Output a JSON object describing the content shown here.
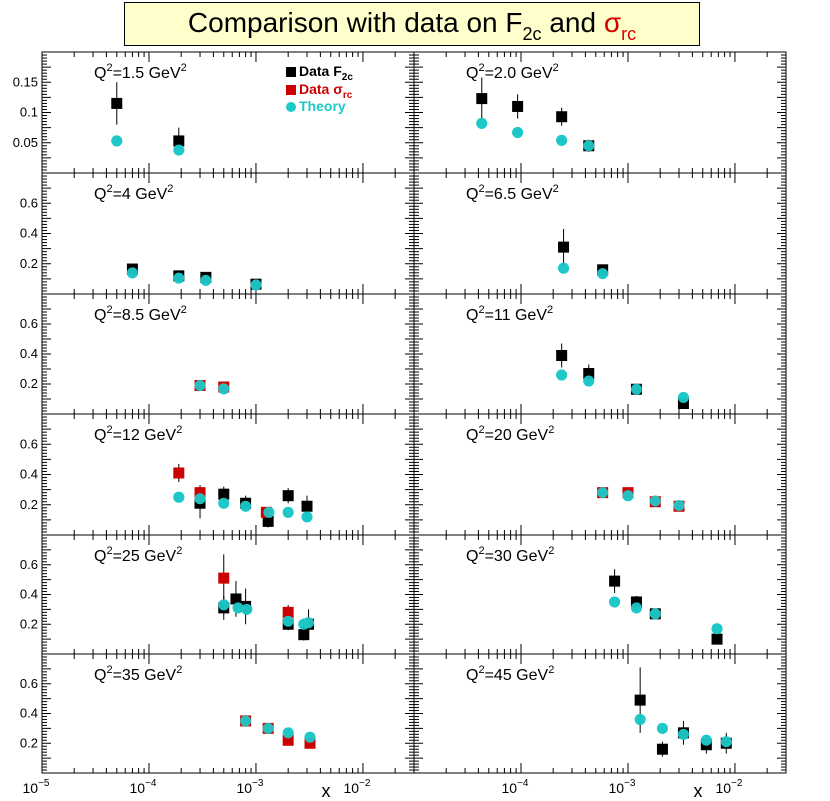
{
  "title": {
    "prefix": "Comparison with data on F",
    "f2c_sub": "2c",
    "mid": "and",
    "sigma": "σ",
    "sigma_sub": "rc"
  },
  "colors": {
    "f2c": "#000000",
    "sigma": "#cc0000",
    "theory": "#1fc8c8"
  },
  "legend": [
    {
      "marker": "square",
      "color": "#000000",
      "text": "Data F",
      "sub": "2c"
    },
    {
      "marker": "square",
      "color": "#cc0000",
      "text": "Data σ",
      "sub": "rc"
    },
    {
      "marker": "circle",
      "color": "#1fc8c8",
      "text": "Theory",
      "sub": ""
    }
  ],
  "chart_data": {
    "type": "scatter",
    "x_scale": "log",
    "xlim": [
      1e-05,
      0.03
    ],
    "xlabel": "x",
    "x_ticks": [
      {
        "value": 1e-05,
        "mant": "10",
        "exp": "−5"
      },
      {
        "value": 0.0001,
        "mant": "10",
        "exp": "−4"
      },
      {
        "value": 0.001,
        "mant": "10",
        "exp": "−3"
      },
      {
        "value": 0.01,
        "mant": "10",
        "exp": "−2"
      }
    ],
    "panels": [
      {
        "q2": "1.5",
        "col": 0,
        "row": 0,
        "ylim": [
          0,
          0.2
        ],
        "yticks": [
          0.05,
          0.1,
          0.15
        ],
        "ytick_labels": [
          "0.05",
          "0.1",
          "0.15"
        ],
        "f2c": [
          [
            5e-05,
            0.115,
            0.035
          ],
          [
            0.00019,
            0.053,
            0.022
          ]
        ],
        "sigma": [],
        "theory": [
          [
            5e-05,
            0.053
          ],
          [
            0.00019,
            0.038
          ]
        ]
      },
      {
        "q2": "2.0",
        "col": 1,
        "row": 0,
        "ylim": [
          0,
          0.2
        ],
        "yticks": [
          0.05,
          0.1,
          0.15
        ],
        "ytick_labels": [
          "",
          "",
          ""
        ],
        "f2c": [
          [
            4.3e-05,
            0.123,
            0.035
          ],
          [
            9.3e-05,
            0.11,
            0.02
          ],
          [
            0.00024,
            0.093,
            0.015
          ],
          [
            0.00043,
            0.045,
            0.01
          ]
        ],
        "sigma": [],
        "theory": [
          [
            4.3e-05,
            0.082
          ],
          [
            9.3e-05,
            0.067
          ],
          [
            0.00024,
            0.054
          ],
          [
            0.00043,
            0.045
          ]
        ]
      },
      {
        "q2": "4",
        "col": 0,
        "row": 1,
        "ylim": [
          0,
          0.8
        ],
        "yticks": [
          0.2,
          0.4,
          0.6
        ],
        "ytick_labels": [
          "0.2",
          "0.4",
          "0.6"
        ],
        "f2c": [
          [
            7e-05,
            0.165,
            0.02
          ],
          [
            0.00019,
            0.12,
            0.02
          ],
          [
            0.00034,
            0.11,
            0.02
          ],
          [
            0.001,
            0.065,
            0.015
          ]
        ],
        "sigma": [],
        "theory": [
          [
            7e-05,
            0.14
          ],
          [
            0.00019,
            0.105
          ],
          [
            0.00034,
            0.09
          ],
          [
            0.001,
            0.06
          ]
        ]
      },
      {
        "q2": "6.5",
        "col": 1,
        "row": 1,
        "ylim": [
          0,
          0.8
        ],
        "yticks": [
          0.2,
          0.4,
          0.6
        ],
        "ytick_labels": [
          "",
          "",
          ""
        ],
        "f2c": [
          [
            0.00025,
            0.31,
            0.12
          ],
          [
            0.00058,
            0.16,
            0.02
          ]
        ],
        "sigma": [],
        "theory": [
          [
            0.00025,
            0.17
          ],
          [
            0.00058,
            0.135
          ]
        ]
      },
      {
        "q2": "8.5",
        "col": 0,
        "row": 2,
        "ylim": [
          0,
          0.8
        ],
        "yticks": [
          0.2,
          0.4,
          0.6
        ],
        "ytick_labels": [
          "0.2",
          "0.4",
          "0.6"
        ],
        "f2c": [],
        "sigma": [
          [
            0.0003,
            0.19,
            0.015
          ],
          [
            0.0005,
            0.18,
            0.015
          ]
        ],
        "theory": [
          [
            0.0003,
            0.19
          ],
          [
            0.0005,
            0.168
          ]
        ]
      },
      {
        "q2": "11",
        "col": 1,
        "row": 2,
        "ylim": [
          0,
          0.8
        ],
        "yticks": [
          0.2,
          0.4,
          0.6
        ],
        "ytick_labels": [
          "",
          "",
          ""
        ],
        "f2c": [
          [
            0.00024,
            0.39,
            0.08
          ],
          [
            0.00043,
            0.27,
            0.06
          ],
          [
            0.0012,
            0.165,
            0.02
          ],
          [
            0.0033,
            0.07,
            0.02
          ]
        ],
        "sigma": [],
        "theory": [
          [
            0.00024,
            0.26
          ],
          [
            0.00043,
            0.22
          ],
          [
            0.0012,
            0.165
          ],
          [
            0.0033,
            0.11
          ]
        ]
      },
      {
        "q2": "12",
        "col": 0,
        "row": 3,
        "ylim": [
          0,
          0.8
        ],
        "yticks": [
          0.2,
          0.4,
          0.6
        ],
        "ytick_labels": [
          "0.2",
          "0.4",
          "0.6"
        ],
        "f2c": [
          [
            0.0003,
            0.21,
            0.1
          ],
          [
            0.0005,
            0.27,
            0.05
          ],
          [
            0.0008,
            0.21,
            0.05
          ],
          [
            0.0013,
            0.09,
            0.04
          ],
          [
            0.002,
            0.26,
            0.05
          ],
          [
            0.003,
            0.19,
            0.07
          ]
        ],
        "sigma": [
          [
            0.00019,
            0.41,
            0.06
          ],
          [
            0.0003,
            0.28,
            0.05
          ],
          [
            0.00125,
            0.15,
            0.03
          ]
        ],
        "theory": [
          [
            0.00019,
            0.25
          ],
          [
            0.0003,
            0.24
          ],
          [
            0.0005,
            0.21
          ],
          [
            0.0008,
            0.19
          ],
          [
            0.00132,
            0.15
          ],
          [
            0.002,
            0.15
          ],
          [
            0.003,
            0.12
          ]
        ]
      },
      {
        "q2": "20",
        "col": 1,
        "row": 3,
        "ylim": [
          0,
          0.8
        ],
        "yticks": [
          0.2,
          0.4,
          0.6
        ],
        "ytick_labels": [
          "",
          "",
          ""
        ],
        "f2c": [],
        "sigma": [
          [
            0.00058,
            0.28,
            0.03
          ],
          [
            0.001,
            0.28,
            0.02
          ],
          [
            0.0018,
            0.22,
            0.02
          ],
          [
            0.003,
            0.19,
            0.02
          ]
        ],
        "theory": [
          [
            0.00058,
            0.28
          ],
          [
            0.001,
            0.26
          ],
          [
            0.0018,
            0.225
          ],
          [
            0.003,
            0.195
          ]
        ]
      },
      {
        "q2": "25",
        "col": 0,
        "row": 4,
        "ylim": [
          0,
          0.8
        ],
        "yticks": [
          0.2,
          0.4,
          0.6
        ],
        "ytick_labels": [
          "0.2",
          "0.4",
          "0.6"
        ],
        "f2c": [
          [
            0.0005,
            0.31,
            0.08
          ],
          [
            0.00065,
            0.37,
            0.12
          ],
          [
            0.0008,
            0.32,
            0.12
          ],
          [
            0.002,
            0.2,
            0.04
          ],
          [
            0.0028,
            0.13,
            0.04
          ],
          [
            0.0031,
            0.2,
            0.1
          ]
        ],
        "sigma": [
          [
            0.0005,
            0.51,
            0.16
          ],
          [
            0.002,
            0.28,
            0.05
          ]
        ],
        "theory": [
          [
            0.0005,
            0.33
          ],
          [
            0.00068,
            0.31
          ],
          [
            0.00082,
            0.3
          ],
          [
            0.002,
            0.22
          ],
          [
            0.0028,
            0.2
          ],
          [
            0.0031,
            0.21
          ]
        ]
      },
      {
        "q2": "30",
        "col": 1,
        "row": 4,
        "ylim": [
          0,
          0.8
        ],
        "yticks": [
          0.2,
          0.4,
          0.6
        ],
        "ytick_labels": [
          "",
          "",
          ""
        ],
        "f2c": [
          [
            0.00075,
            0.49,
            0.08
          ],
          [
            0.0012,
            0.35,
            0.04
          ],
          [
            0.0018,
            0.27,
            0.03
          ],
          [
            0.0068,
            0.1,
            0.02
          ]
        ],
        "sigma": [],
        "theory": [
          [
            0.00075,
            0.35
          ],
          [
            0.0012,
            0.31
          ],
          [
            0.0018,
            0.27
          ],
          [
            0.0068,
            0.17
          ]
        ]
      },
      {
        "q2": "35",
        "col": 0,
        "row": 5,
        "ylim": [
          0,
          0.8
        ],
        "yticks": [
          0.2,
          0.4,
          0.6
        ],
        "ytick_labels": [
          "0.2",
          "0.4",
          "0.6"
        ],
        "f2c": [],
        "sigma": [
          [
            0.0008,
            0.35,
            0.04
          ],
          [
            0.0013,
            0.3,
            0.03
          ],
          [
            0.002,
            0.22,
            0.03
          ],
          [
            0.0032,
            0.2,
            0.02
          ]
        ],
        "theory": [
          [
            0.0008,
            0.35
          ],
          [
            0.0013,
            0.3
          ],
          [
            0.002,
            0.27
          ],
          [
            0.0032,
            0.24
          ]
        ]
      },
      {
        "q2": "45",
        "col": 1,
        "row": 5,
        "ylim": [
          0,
          0.8
        ],
        "yticks": [
          0.2,
          0.4,
          0.6
        ],
        "ytick_labels": [
          "",
          "",
          ""
        ],
        "f2c": [
          [
            0.0013,
            0.49,
            0.22
          ],
          [
            0.0021,
            0.16,
            0.05
          ],
          [
            0.0033,
            0.27,
            0.08
          ],
          [
            0.0054,
            0.19,
            0.06
          ],
          [
            0.0083,
            0.2,
            0.07
          ]
        ],
        "sigma": [],
        "theory": [
          [
            0.0013,
            0.36
          ],
          [
            0.0021,
            0.3
          ],
          [
            0.0033,
            0.26
          ],
          [
            0.0054,
            0.22
          ],
          [
            0.0083,
            0.21
          ]
        ]
      }
    ]
  }
}
